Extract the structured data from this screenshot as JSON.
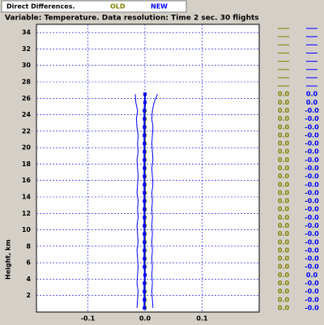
{
  "chart_data": {
    "type": "profile",
    "title": "Direct Differences.",
    "subtitle": "Variable: Temperature. Data resolution: Time 2 sec. 30 flights",
    "y_label": "Height, km",
    "heights": [
      0.5,
      1.5,
      2.5,
      3.5,
      4.5,
      5.5,
      6.5,
      7.5,
      8.5,
      9.5,
      10.5,
      11.5,
      12.5,
      13.5,
      14.5,
      15.5,
      16.5,
      17.5,
      18.5,
      19.5,
      20.5,
      21.5,
      22.5,
      23.5,
      24.5,
      25.5,
      26.5
    ],
    "series": [
      {
        "name": "OLD",
        "color": "#808000",
        "values": [
          0,
          0,
          0,
          0,
          0,
          0,
          0,
          0,
          0,
          0,
          0,
          0,
          0,
          0,
          0,
          0,
          0,
          0,
          0,
          0,
          0,
          0,
          0,
          0,
          0,
          0,
          0
        ],
        "value_labels": [
          "0.0",
          "0.0",
          "0.0",
          "0.0",
          "0.0",
          "0.0",
          "0.0",
          "0.0",
          "0.0",
          "0.0",
          "0.0",
          "0.0",
          "0.0",
          "0.0",
          "0.0",
          "0.0",
          "0.0",
          "0.0",
          "0.0",
          "0.0",
          "0.0",
          "0.0",
          "0.0",
          "0.0",
          "0.0",
          "0.0",
          "0.0"
        ]
      },
      {
        "name": "NEW",
        "color": "#0000ff",
        "values": [
          -0.001,
          -0.001,
          -0.001,
          -0.001,
          0,
          -0.001,
          -0.001,
          -0.001,
          -0.001,
          -0.001,
          -0.001,
          -0.001,
          -0.001,
          -0.001,
          -0.001,
          -0.001,
          -0.001,
          -0.001,
          -0.001,
          -0.001,
          -0.001,
          -0.001,
          -0.001,
          -0.001,
          -0.001,
          0,
          0
        ],
        "value_labels": [
          "-0.0",
          "-0.0",
          "-0.0",
          "-0.0",
          "0.0",
          "-0.0",
          "-0.0",
          "-0.0",
          "-0.0",
          "-0.0",
          "-0.0",
          "-0.0",
          "-0.0",
          "-0.0",
          "-0.0",
          "-0.0",
          "-0.0",
          "-0.0",
          "-0.0",
          "-0.0",
          "-0.0",
          "-0.0",
          "-0.0",
          "-0.0",
          "-0.0",
          "0.0",
          "0.0"
        ],
        "lower": [
          -0.014,
          -0.013,
          -0.012,
          -0.014,
          -0.013,
          -0.012,
          -0.013,
          -0.014,
          -0.012,
          -0.013,
          -0.014,
          -0.012,
          -0.013,
          -0.012,
          -0.014,
          -0.013,
          -0.012,
          -0.013,
          -0.014,
          -0.012,
          -0.013,
          -0.012,
          -0.014,
          -0.015,
          -0.013,
          -0.016,
          -0.017
        ],
        "upper": [
          0.014,
          0.013,
          0.012,
          0.013,
          0.012,
          0.013,
          0.012,
          0.013,
          0.012,
          0.013,
          0.012,
          0.013,
          0.012,
          0.013,
          0.012,
          0.014,
          0.013,
          0.012,
          0.014,
          0.013,
          0.012,
          0.013,
          0.014,
          0.012,
          0.013,
          0.016,
          0.022
        ]
      }
    ],
    "xlim": [
      -0.19,
      0.2
    ],
    "ylim": [
      0,
      35
    ],
    "xticks": [
      -0.1,
      {
        "value": 0,
        "label": "0.0"
      },
      0.1
    ],
    "yticks": [
      2,
      4,
      6,
      8,
      10,
      12,
      14,
      16,
      18,
      20,
      22,
      24,
      26,
      28,
      30,
      32,
      34
    ],
    "grid": true
  }
}
